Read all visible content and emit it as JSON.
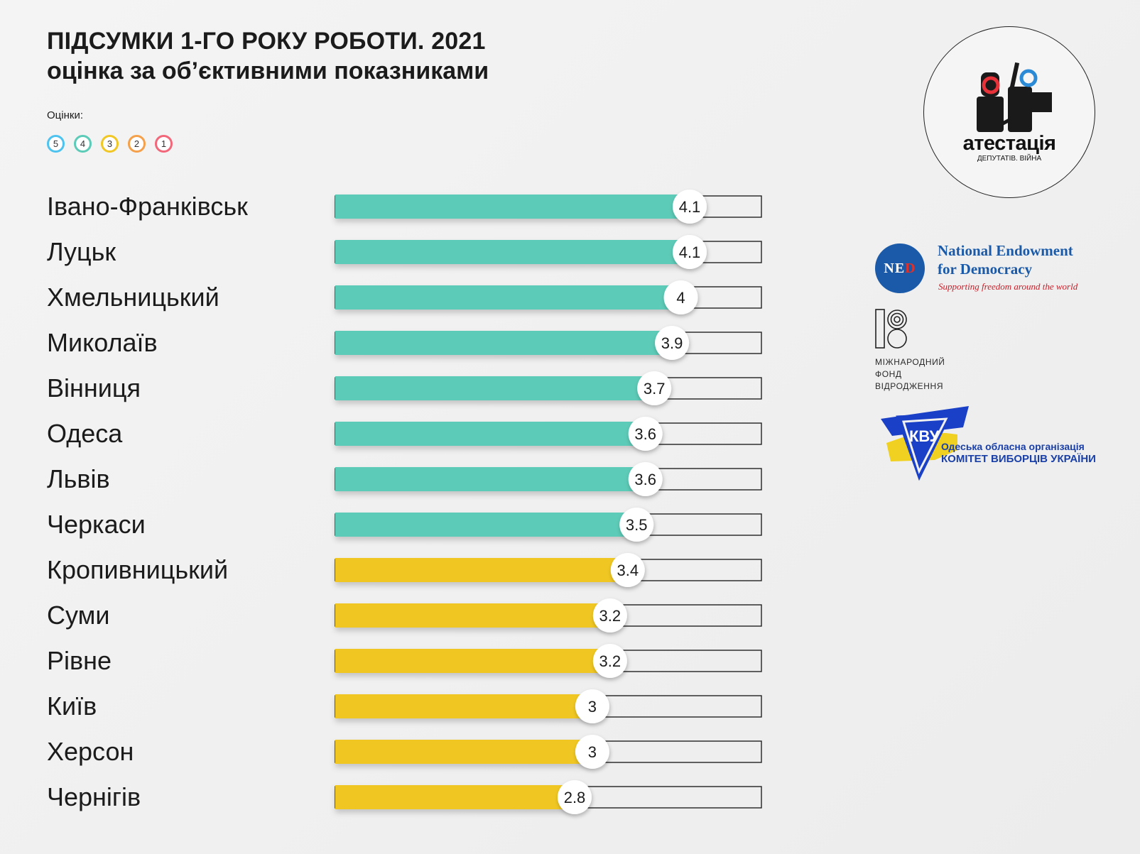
{
  "header": {
    "title": "ПІДСУМКИ 1-ГО РОКУ РОБОТИ.  2021",
    "subtitle": "оцінка за об’єктивними показниками"
  },
  "legend": {
    "label": "Оцінки:",
    "items": [
      {
        "text": "5",
        "color": "#4ec3ef"
      },
      {
        "text": "4",
        "color": "#5ccbb7"
      },
      {
        "text": "3",
        "color": "#f0c724"
      },
      {
        "text": "2",
        "color": "#f5a04a"
      },
      {
        "text": "1",
        "color": "#f2677a"
      }
    ]
  },
  "chart_data": {
    "type": "bar",
    "orientation": "horizontal",
    "title": "ПІДСУМКИ 1-ГО РОКУ РОБОТИ.  2021",
    "subtitle": "оцінка за об’єктивними показниками",
    "xlim": [
      0,
      5
    ],
    "grid": false,
    "categories": [
      "Івано-Франківськ",
      "Луцьк",
      "Хмельницький",
      "Миколаїв",
      "Вінниця",
      "Одеса",
      "Львів",
      "Черкаси",
      "Кропивницький",
      "Суми",
      "Рівне",
      "Київ",
      "Херсон",
      "Чернігів"
    ],
    "values": [
      4.1,
      4.1,
      4,
      3.9,
      3.7,
      3.6,
      3.6,
      3.5,
      3.4,
      3.2,
      3.2,
      3,
      3,
      2.8
    ],
    "labels": [
      "4.1",
      "4.1",
      "4",
      "3.9",
      "3.7",
      "3.6",
      "3.6",
      "3.5",
      "3.4",
      "3.2",
      "3.2",
      "3",
      "3",
      "2.8"
    ],
    "colors": [
      "#5ccbb7",
      "#5ccbb7",
      "#5ccbb7",
      "#5ccbb7",
      "#5ccbb7",
      "#5ccbb7",
      "#5ccbb7",
      "#5ccbb7",
      "#f0c724",
      "#f0c724",
      "#f0c724",
      "#f0c724",
      "#f0c724",
      "#f0c724"
    ]
  },
  "logos": {
    "attestation": {
      "name": "атестація",
      "tagline": "ДЕПУТАТІВ. ВІЙНА"
    },
    "ned": {
      "abbr_main": "NE",
      "abbr_accent": "D",
      "name_line1": "National Endowment",
      "name_line2": "for Democracy",
      "tagline": "Supporting freedom around the world"
    },
    "irf": {
      "line1": "МІЖНАРОДНИЙ",
      "line2": "ФОНД",
      "line3": "ВІДРОДЖЕННЯ"
    },
    "cvu": {
      "line1": "Одеська обласна організація",
      "line2": "КОМІТЕТ ВИБОРЦІВ УКРАЇНИ"
    }
  }
}
